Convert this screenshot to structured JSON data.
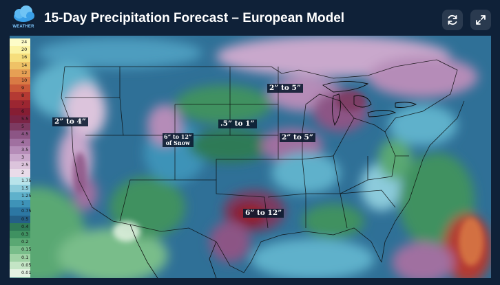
{
  "header": {
    "title": "15-Day Precipitation Forecast – European Model",
    "logo_text": "WEATHER",
    "refresh_icon": "refresh-icon",
    "fullscreen_icon": "expand-icon"
  },
  "map": {
    "legend": [
      {
        "label": "24",
        "color": "#fdfcc8"
      },
      {
        "label": "20",
        "color": "#fbf3a3"
      },
      {
        "label": "16",
        "color": "#f6de7c"
      },
      {
        "label": "14",
        "color": "#efc266"
      },
      {
        "label": "12",
        "color": "#e6a054"
      },
      {
        "label": "10",
        "color": "#d97a44"
      },
      {
        "label": "9",
        "color": "#c95838"
      },
      {
        "label": "8",
        "color": "#b43a33"
      },
      {
        "label": "7",
        "color": "#9c2631"
      },
      {
        "label": "6",
        "color": "#861d33"
      },
      {
        "label": "5.5",
        "color": "#7a2445"
      },
      {
        "label": "5",
        "color": "#7d3a61"
      },
      {
        "label": "4.5",
        "color": "#8c5585"
      },
      {
        "label": "4",
        "color": "#a070a0"
      },
      {
        "label": "3.5",
        "color": "#b58cb8"
      },
      {
        "label": "3",
        "color": "#c9a8cc"
      },
      {
        "label": "2.5",
        "color": "#dcc4dc"
      },
      {
        "label": "2",
        "color": "#e9dbe9"
      },
      {
        "label": "1.75",
        "color": "#b8e3ea"
      },
      {
        "label": "1.5",
        "color": "#8ccbdb"
      },
      {
        "label": "1.25",
        "color": "#5fb1cb"
      },
      {
        "label": "1",
        "color": "#3e93b8"
      },
      {
        "label": "0.75",
        "color": "#2c77a3"
      },
      {
        "label": "0.5",
        "color": "#245f87"
      },
      {
        "label": "0.4",
        "color": "#2f7a57"
      },
      {
        "label": "0.3",
        "color": "#3f9161"
      },
      {
        "label": "0.2",
        "color": "#5aa873"
      },
      {
        "label": "0.15",
        "color": "#79bd8a"
      },
      {
        "label": "0.1",
        "color": "#9fd2a5"
      },
      {
        "label": "0.05",
        "color": "#c4e5c5"
      },
      {
        "label": "0.01",
        "color": "#e4f3e2"
      }
    ],
    "labels": {
      "west_coast": "2” to 4”",
      "rockies_snow_line1": "6” to 12”",
      "rockies_snow_line2": "of Snow",
      "plains": ".5” to 1”",
      "upper_midwest": "2” to 5”",
      "mid_mississippi": "2” to 5”",
      "texas": "6” to 12”"
    }
  }
}
